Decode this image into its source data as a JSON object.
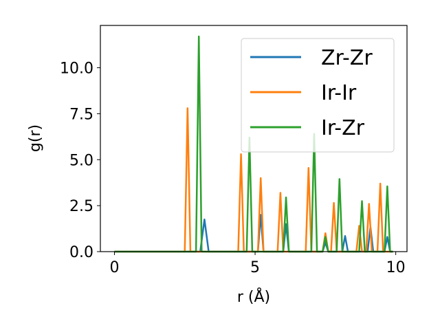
{
  "chart_data": {
    "type": "line",
    "xlabel": "r (Å)",
    "ylabel": "g(r)",
    "xlim": [
      -0.5,
      10.4
    ],
    "ylim": [
      0,
      12.3
    ],
    "xticks": [
      0,
      5,
      10
    ],
    "xtick_labels": [
      "0",
      "5",
      "10"
    ],
    "yticks": [
      0,
      2.5,
      5,
      7.5,
      10
    ],
    "ytick_labels": [
      "0.0",
      "2.5",
      "5.0",
      "7.5",
      "10.0"
    ],
    "grid": false,
    "legend_position": "top-right",
    "series": [
      {
        "name": "Zr-Zr",
        "color": "#1f77b4",
        "x": [
          0,
          3.05,
          3.2,
          3.35,
          5.1,
          5.2,
          5.3,
          6.0,
          6.1,
          6.2,
          7.4,
          7.5,
          7.6,
          8.1,
          8.2,
          8.3,
          9.0,
          9.1,
          9.2,
          9.6,
          9.7,
          9.8,
          9.9
        ],
        "values": [
          0,
          0,
          1.75,
          0,
          0,
          2.0,
          0,
          0,
          1.5,
          0,
          0,
          0.5,
          0,
          0,
          0.85,
          0,
          0,
          1.35,
          0,
          0,
          0.8,
          0,
          0
        ]
      },
      {
        "name": "Ir-Ir",
        "color": "#ff7f0e",
        "x": [
          0,
          2.5,
          2.6,
          2.7,
          4.4,
          4.5,
          4.6,
          5.1,
          5.2,
          5.3,
          5.8,
          5.9,
          6.0,
          6.8,
          6.9,
          7.0,
          7.4,
          7.5,
          7.6,
          7.7,
          7.8,
          7.9,
          8.6,
          8.7,
          8.8,
          8.95,
          9.05,
          9.15,
          9.35,
          9.45,
          9.55,
          9.9
        ],
        "values": [
          0,
          0,
          7.8,
          0,
          0,
          5.3,
          0,
          0,
          4.0,
          0,
          0,
          3.2,
          0,
          0,
          4.55,
          0,
          0,
          1.0,
          0,
          0,
          2.65,
          0,
          0,
          1.4,
          0,
          0,
          2.6,
          0,
          0,
          3.7,
          0,
          0
        ]
      },
      {
        "name": "Ir-Zr",
        "color": "#2ca02c",
        "x": [
          0,
          2.9,
          3.0,
          3.1,
          4.7,
          4.8,
          4.9,
          6.0,
          6.1,
          6.2,
          7.0,
          7.1,
          7.2,
          7.4,
          7.5,
          7.6,
          7.9,
          8.0,
          8.1,
          8.7,
          8.8,
          8.9,
          9.3,
          9.4,
          9.5,
          9.6,
          9.7,
          9.8,
          9.9
        ],
        "values": [
          0,
          0,
          11.7,
          0,
          0,
          6.2,
          0,
          0,
          2.95,
          0,
          0,
          6.4,
          0,
          0,
          0.8,
          0,
          0,
          3.95,
          0,
          0,
          2.75,
          0,
          0,
          0,
          0,
          0,
          3.55,
          0,
          0
        ]
      }
    ]
  }
}
